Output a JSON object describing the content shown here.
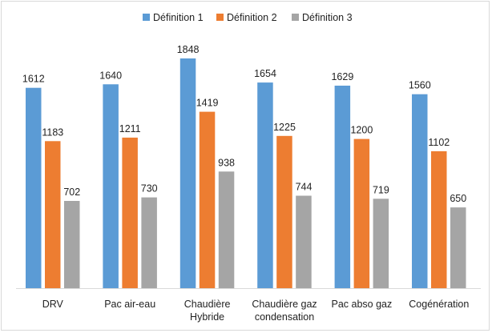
{
  "chart_data": {
    "type": "bar",
    "title": "",
    "xlabel": "",
    "ylabel": "",
    "ylim": [
      0,
      2000
    ],
    "grid": false,
    "legend_position": "top",
    "categories": [
      [
        "DRV"
      ],
      [
        "Pac air-eau"
      ],
      [
        "Chaudière",
        "Hybride"
      ],
      [
        "Chaudière gaz",
        "condensation"
      ],
      [
        "Pac abso gaz"
      ],
      [
        "Cogénération"
      ]
    ],
    "series": [
      {
        "name": "Définition 1",
        "color": "#5b9bd5",
        "values": [
          1612,
          1640,
          1848,
          1654,
          1629,
          1560
        ]
      },
      {
        "name": "Définition 2",
        "color": "#ed7d31",
        "values": [
          1183,
          1211,
          1419,
          1225,
          1200,
          1102
        ]
      },
      {
        "name": "Définition 3",
        "color": "#a5a5a5",
        "values": [
          702,
          730,
          938,
          744,
          719,
          650
        ]
      }
    ],
    "data_labels": true,
    "axis_color": "#d9d9d9"
  }
}
